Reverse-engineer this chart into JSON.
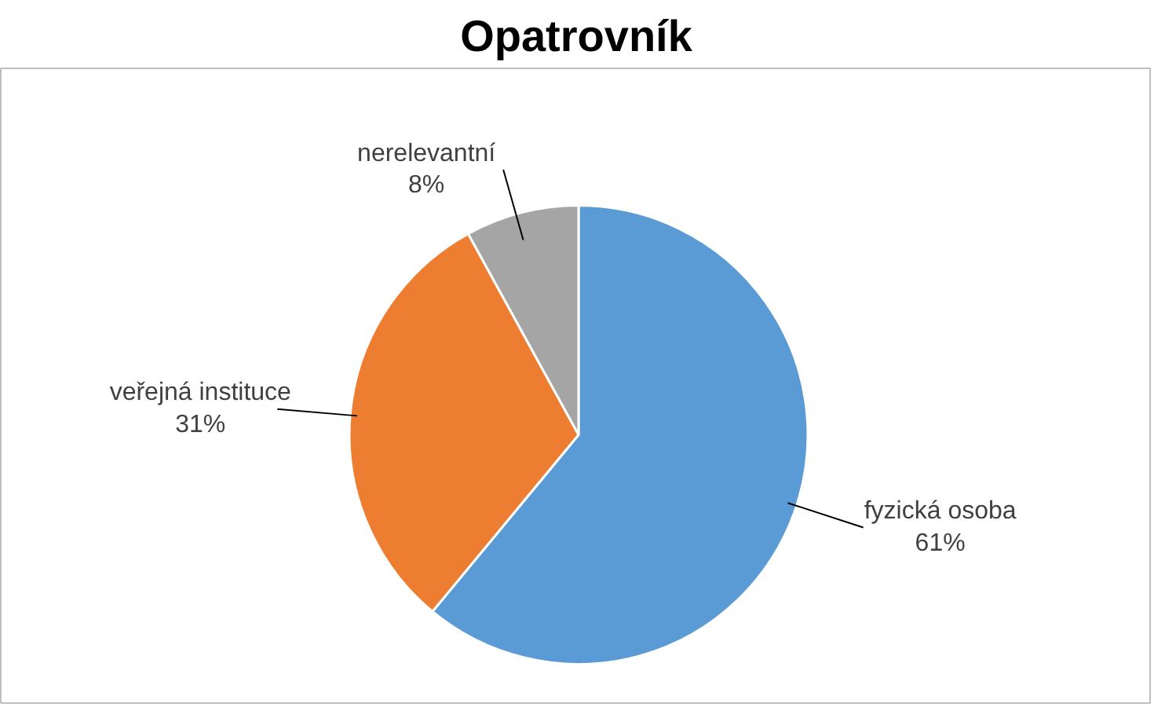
{
  "chart_data": {
    "type": "pie",
    "title": "Opatrovník",
    "categories": [
      "fyzická osoba",
      "veřejná instituce",
      "nerelevantní"
    ],
    "values": [
      61,
      31,
      8
    ],
    "value_labels": [
      "61%",
      "31%",
      "8%"
    ],
    "colors": [
      "#5b9bd5",
      "#ed7d31",
      "#a5a5a5"
    ]
  }
}
